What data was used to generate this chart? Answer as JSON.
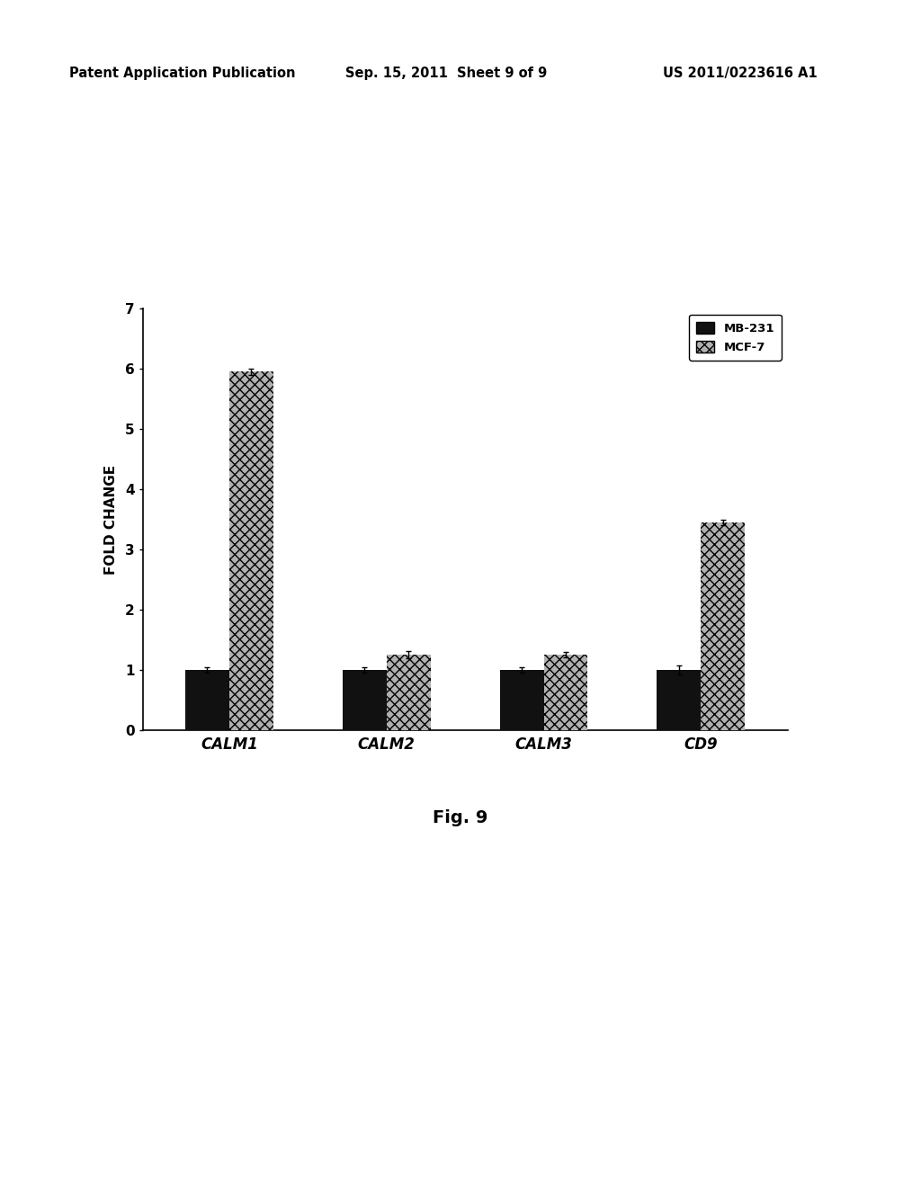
{
  "categories": [
    "CALM1",
    "CALM2",
    "CALM3",
    "CD9"
  ],
  "mb231_values": [
    1.0,
    1.0,
    1.0,
    1.0
  ],
  "mcf7_values": [
    5.95,
    1.25,
    1.25,
    3.45
  ],
  "mb231_errors": [
    0.05,
    0.04,
    0.04,
    0.08
  ],
  "mcf7_errors": [
    0.05,
    0.06,
    0.05,
    0.05
  ],
  "mb231_color": "#111111",
  "mcf7_color": "#b0b0b0",
  "ylabel": "FOLD CHANGE",
  "ylim": [
    0,
    7
  ],
  "yticks": [
    0,
    1,
    2,
    3,
    4,
    5,
    6,
    7
  ],
  "legend_labels": [
    "MB-231",
    "MCF-7"
  ],
  "fig_caption": "Fig. 9",
  "header_left": "Patent Application Publication",
  "header_mid": "Sep. 15, 2011  Sheet 9 of 9",
  "header_right": "US 2011/0223616 A1",
  "bar_width": 0.28,
  "background_color": "#ffffff",
  "axis_color": "#000000",
  "text_color": "#000000"
}
